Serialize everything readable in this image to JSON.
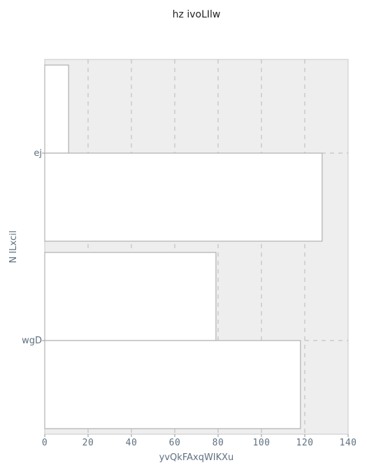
{
  "chart_data": {
    "type": "bar",
    "orientation": "horizontal",
    "title": "hz ivoLIlw",
    "xlabel": "yvQkFAxqWIKXu",
    "ylabel": "N ILxcil",
    "categories": [
      "ej",
      "wgD"
    ],
    "series": [
      {
        "values": [
          11,
          79
        ]
      },
      {
        "values": [
          128,
          118
        ]
      }
    ],
    "xlim": [
      0,
      140
    ],
    "x_ticks": [
      "0",
      "20",
      "40",
      "60",
      "80",
      "100",
      "120",
      "140"
    ],
    "grid": "vertical dashed",
    "legend": "none",
    "colors": {
      "plot_background": "#eeeeee",
      "bar_fill": "#ffffff",
      "bar_stroke": "#b0b0b0",
      "grid": "#b8b8b8",
      "text": "#5f7080",
      "title": "#222222"
    }
  }
}
